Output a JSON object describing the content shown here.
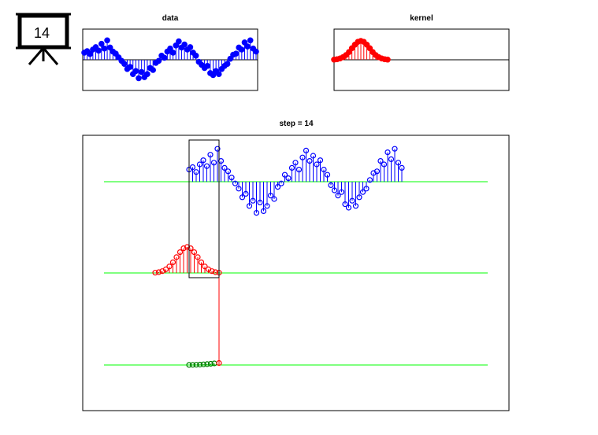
{
  "badge": "14",
  "chart_data": [
    {
      "type": "stem",
      "title": "data",
      "color": "#0000ff",
      "values": [
        0.35,
        0.42,
        0.28,
        0.5,
        0.62,
        0.45,
        0.78,
        0.55,
        0.95,
        0.6,
        0.4,
        0.3,
        0.12,
        -0.05,
        -0.2,
        -0.45,
        -0.35,
        -0.7,
        -0.55,
        -0.9,
        -0.6,
        -0.85,
        -0.7,
        -0.4,
        -0.5,
        -0.15,
        -0.05,
        0.2,
        0.1,
        0.4,
        0.55,
        0.35,
        0.7,
        0.9,
        0.6,
        0.75,
        0.5,
        0.62,
        0.35,
        0.2,
        -0.1,
        -0.25,
        -0.4,
        -0.3,
        -0.65,
        -0.75,
        -0.55,
        -0.7,
        -0.45,
        -0.3,
        -0.2,
        0.05,
        0.25,
        0.3,
        0.6,
        0.5,
        0.85,
        0.65,
        0.95,
        0.55,
        0.4
      ]
    },
    {
      "type": "stem",
      "title": "kernel",
      "color": "#ff0000",
      "values": [
        0.01,
        0.03,
        0.07,
        0.14,
        0.25,
        0.41,
        0.61,
        0.8,
        0.95,
        1,
        0.95,
        0.8,
        0.61,
        0.41,
        0.25,
        0.14,
        0.07,
        0.03,
        0.01
      ]
    },
    {
      "type": "convolution",
      "title": "step = 14",
      "color": "#008000",
      "current_color": "#ff0000",
      "baseline_color": "#00ff00",
      "values": [
        0.01,
        0.02,
        0.03,
        0.05,
        0.08,
        0.11,
        0.15,
        0.2,
        0.25
      ]
    }
  ]
}
